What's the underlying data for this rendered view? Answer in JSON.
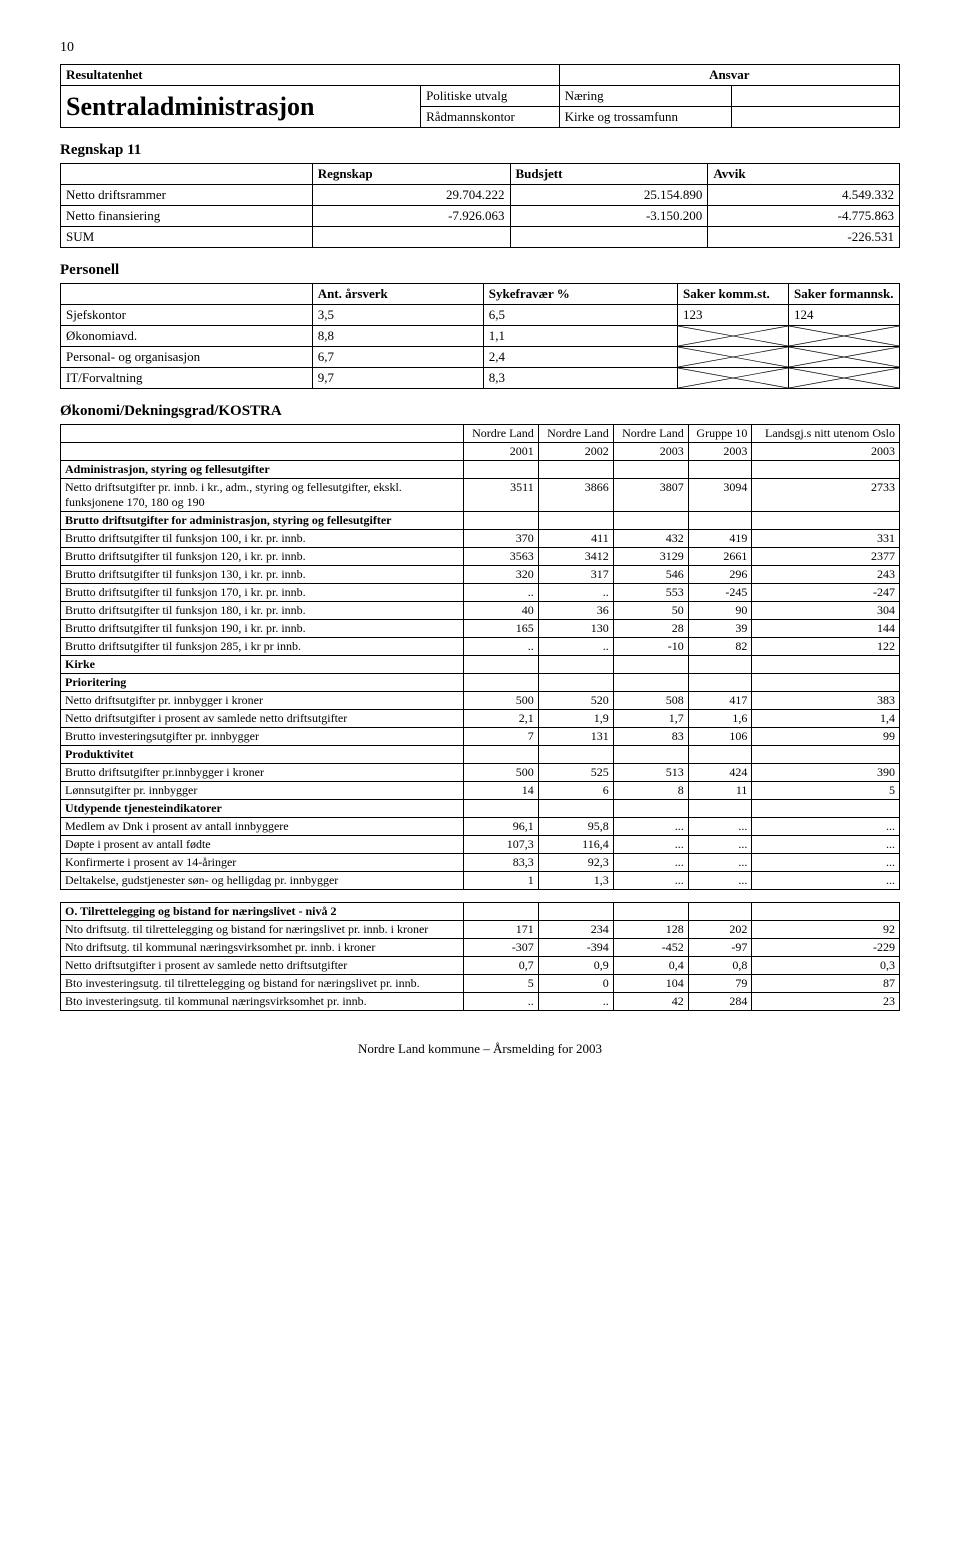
{
  "page_number": "10",
  "header": {
    "resultatenhet_label": "Resultatenhet",
    "ansvar_label": "Ansvar",
    "org_name": "Sentraladministrasjon",
    "left_lines": [
      "Politiske utvalg",
      "Rådmannskontor"
    ],
    "right_lines": [
      "Næring",
      "Kirke og trossamfunn"
    ]
  },
  "regnskap": {
    "title": "Regnskap 11",
    "cols": [
      "Regnskap",
      "Budsjett",
      "Avvik"
    ],
    "rows": [
      {
        "label": "Netto driftsrammer",
        "c": [
          "29.704.222",
          "25.154.890",
          "4.549.332"
        ]
      },
      {
        "label": "Netto finansiering",
        "c": [
          "-7.926.063",
          "-3.150.200",
          "-4.775.863"
        ]
      },
      {
        "label": "SUM",
        "c": [
          "",
          "",
          "-226.531"
        ]
      }
    ]
  },
  "personell": {
    "title": "Personell",
    "cols": [
      "Ant. årsverk",
      "Sykefravær %",
      "Saker komm.st.",
      "Saker formannsk."
    ],
    "rows": [
      {
        "label": "Sjefskontor",
        "c": [
          "3,5",
          "6,5",
          "123",
          "124"
        ],
        "cross": []
      },
      {
        "label": "Økonomiavd.",
        "c": [
          "8,8",
          "1,1",
          "",
          ""
        ],
        "cross": [
          2,
          3
        ]
      },
      {
        "label": "Personal- og organisasjon",
        "c": [
          "6,7",
          "2,4",
          "",
          ""
        ],
        "cross": [
          2,
          3
        ]
      },
      {
        "label": "IT/Forvaltning",
        "c": [
          "9,7",
          "8,3",
          "",
          ""
        ],
        "cross": [
          2,
          3
        ]
      }
    ]
  },
  "kostra": {
    "title": "Økonomi/Dekningsgrad/KOSTRA",
    "head1": [
      "Nordre Land",
      "Nordre Land",
      "Nordre Land",
      "Gruppe 10",
      "Landsgj.s nitt utenom Oslo"
    ],
    "head2": [
      "2001",
      "2002",
      "2003",
      "2003",
      "2003"
    ],
    "sections": [
      {
        "header": "Administrasjon, styring og fellesutgifter",
        "rows": [
          {
            "l": "Netto driftsutgifter pr. innb. i kr., adm., styring og fellesutgifter, ekskl. funksjonene 170, 180 og 190",
            "c": [
              "3511",
              "3866",
              "3807",
              "3094",
              "2733"
            ]
          }
        ]
      },
      {
        "header": "Brutto driftsutgifter for administrasjon, styring og fellesutgifter",
        "rows": [
          {
            "l": "Brutto driftsutgifter til funksjon 100, i kr. pr. innb.",
            "c": [
              "370",
              "411",
              "432",
              "419",
              "331"
            ]
          },
          {
            "l": "Brutto driftsutgifter til funksjon 120, i kr. pr. innb.",
            "c": [
              "3563",
              "3412",
              "3129",
              "2661",
              "2377"
            ]
          },
          {
            "l": "Brutto driftsutgifter til funksjon 130, i kr. pr. innb.",
            "c": [
              "320",
              "317",
              "546",
              "296",
              "243"
            ]
          },
          {
            "l": "Brutto driftsutgifter til funksjon 170, i kr. pr. innb.",
            "c": [
              "..",
              "..",
              "553",
              "-245",
              "-247"
            ]
          },
          {
            "l": "Brutto driftsutgifter til funksjon 180, i kr. pr. innb.",
            "c": [
              "40",
              "36",
              "50",
              "90",
              "304"
            ]
          },
          {
            "l": "Brutto driftsutgifter til funksjon 190, i kr. pr. innb.",
            "c": [
              "165",
              "130",
              "28",
              "39",
              "144"
            ]
          },
          {
            "l": "Brutto driftsutgifter til funksjon 285, i kr pr innb.",
            "c": [
              "..",
              "..",
              "-10",
              "82",
              "122"
            ]
          }
        ]
      },
      {
        "header": "Kirke",
        "rows": []
      },
      {
        "header": "Prioritering",
        "rows": [
          {
            "l": "Netto driftsutgifter pr. innbygger i kroner",
            "c": [
              "500",
              "520",
              "508",
              "417",
              "383"
            ]
          },
          {
            "l": "Netto driftsutgifter i prosent av samlede netto driftsutgifter",
            "c": [
              "2,1",
              "1,9",
              "1,7",
              "1,6",
              "1,4"
            ]
          },
          {
            "l": "Brutto investeringsutgifter pr. innbygger",
            "c": [
              "7",
              "131",
              "83",
              "106",
              "99"
            ]
          }
        ]
      },
      {
        "header": "Produktivitet",
        "rows": [
          {
            "l": "Brutto driftsutgifter pr.innbygger i kroner",
            "c": [
              "500",
              "525",
              "513",
              "424",
              "390"
            ]
          },
          {
            "l": "Lønnsutgifter pr. innbygger",
            "c": [
              "14",
              "6",
              "8",
              "11",
              "5"
            ]
          }
        ]
      },
      {
        "header": "Utdypende tjenesteindikatorer",
        "rows": [
          {
            "l": "Medlem av Dnk i prosent av antall innbyggere",
            "c": [
              "96,1",
              "95,8",
              "...",
              "...",
              "..."
            ]
          },
          {
            "l": "Døpte i prosent av antall fødte",
            "c": [
              "107,3",
              "116,4",
              "...",
              "...",
              "..."
            ]
          },
          {
            "l": "Konfirmerte i prosent av 14-åringer",
            "c": [
              "83,3",
              "92,3",
              "...",
              "...",
              "..."
            ]
          },
          {
            "l": "Deltakelse, gudstjenester søn- og helligdag pr. innbygger",
            "c": [
              "1",
              "1,3",
              "...",
              "...",
              "..."
            ]
          }
        ]
      },
      {
        "header": "O. Tilrettelegging og bistand for næringslivet - nivå 2",
        "spaced": true,
        "rows": [
          {
            "l": "Nto driftsutg. til tilrettelegging og bistand for næringslivet pr. innb. i kroner",
            "c": [
              "171",
              "234",
              "128",
              "202",
              "92"
            ]
          },
          {
            "l": "Nto driftsutg. til kommunal næringsvirksomhet pr. innb. i kroner",
            "c": [
              "-307",
              "-394",
              "-452",
              "-97",
              "-229"
            ]
          },
          {
            "l": "Netto driftsutgifter i prosent av samlede netto driftsutgifter",
            "c": [
              "0,7",
              "0,9",
              "0,4",
              "0,8",
              "0,3"
            ]
          },
          {
            "l": "Bto investeringsutg. til tilrettelegging og bistand for næringslivet pr. innb.",
            "c": [
              "5",
              "0",
              "104",
              "79",
              "87"
            ]
          },
          {
            "l": "Bto investeringsutg. til kommunal næringsvirksomhet pr. innb.",
            "c": [
              "..",
              "..",
              "42",
              "284",
              "23"
            ]
          }
        ]
      }
    ]
  },
  "footer": "Nordre Land kommune – Årsmelding for 2003"
}
